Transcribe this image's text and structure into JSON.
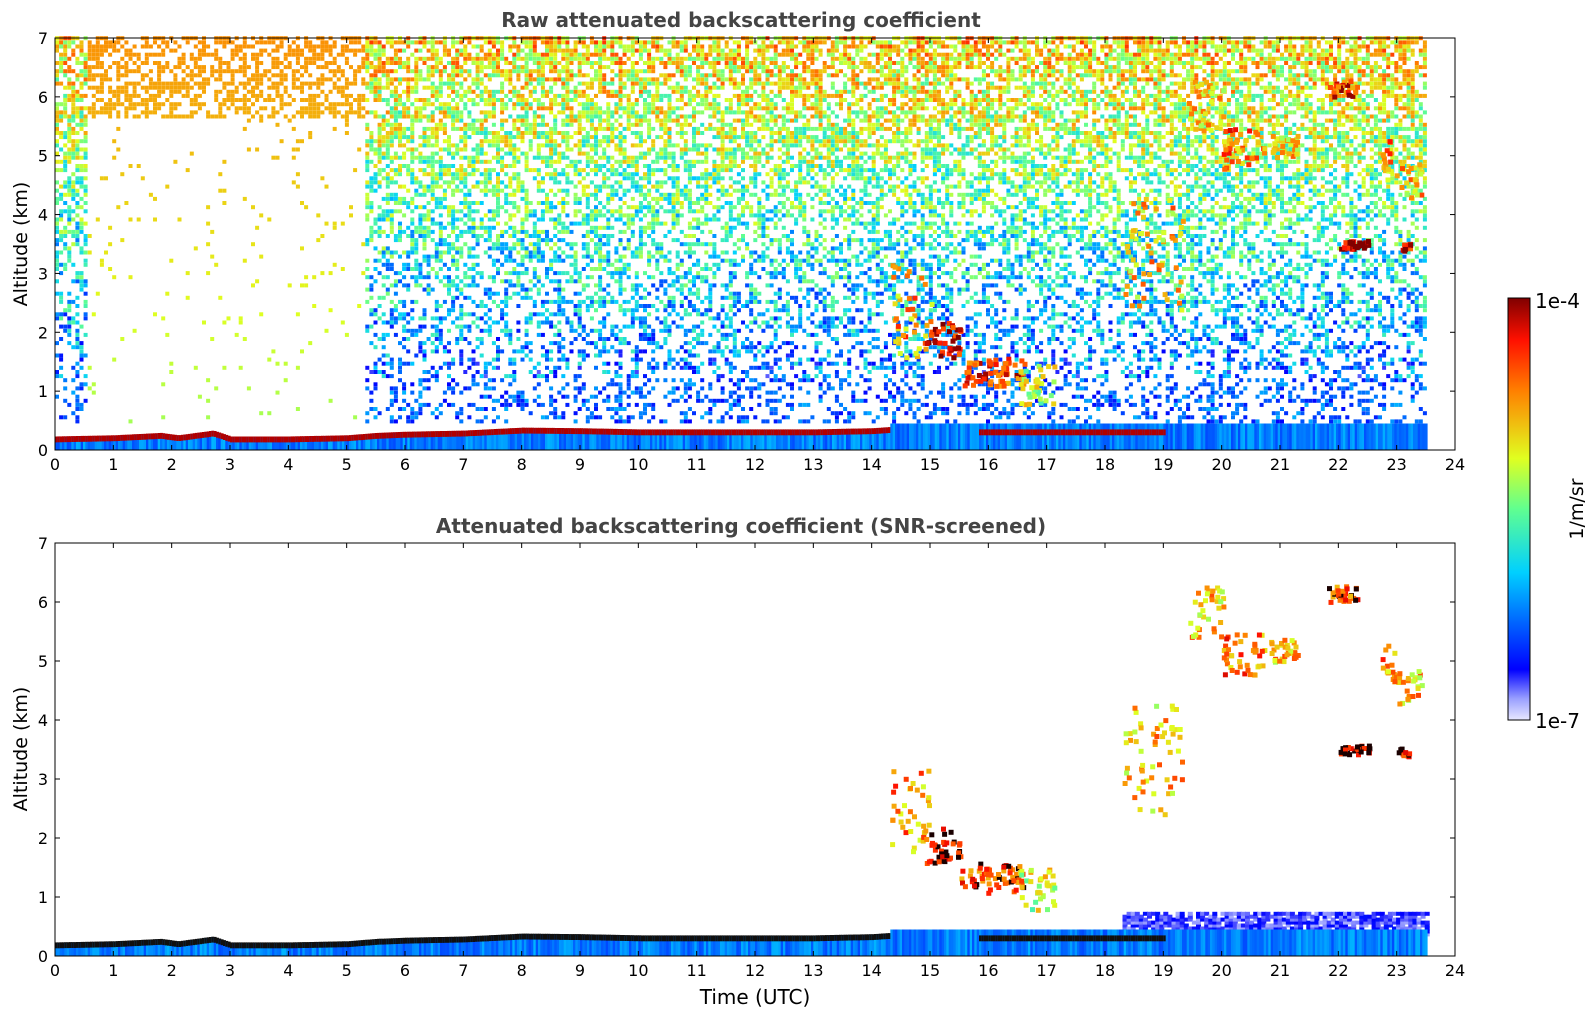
{
  "chart_data": [
    {
      "type": "heatmap",
      "title": "Raw attenuated backscattering coefficient",
      "xlabel": "",
      "ylabel": "Altitude (km)",
      "xlim": [
        0,
        24
      ],
      "ylim": [
        0,
        7
      ],
      "xticks": [
        "0",
        "1",
        "2",
        "3",
        "4",
        "5",
        "6",
        "7",
        "8",
        "9",
        "10",
        "11",
        "12",
        "13",
        "14",
        "15",
        "16",
        "17",
        "18",
        "19",
        "20",
        "21",
        "22",
        "23",
        "24"
      ],
      "yticks": [
        "0",
        "1",
        "2",
        "3",
        "4",
        "5",
        "6",
        "7"
      ],
      "data_end_time": 23.5,
      "features": {
        "boundary_layer_top": {
          "t": [
            0,
            1,
            1.8,
            2.1,
            2.7,
            3,
            4,
            5,
            5.5,
            6,
            7,
            8,
            9,
            10,
            11,
            12,
            13,
            14,
            14.3
          ],
          "z": [
            0.18,
            0.2,
            0.24,
            0.2,
            0.28,
            0.18,
            0.18,
            0.2,
            0.24,
            0.26,
            0.28,
            0.33,
            0.32,
            0.3,
            0.3,
            0.3,
            0.3,
            0.32,
            0.34
          ]
        },
        "cloud_patches": [
          {
            "t0": 14.3,
            "t1": 15.0,
            "z0": 1.6,
            "z1": 3.2,
            "intensity": 0.75
          },
          {
            "t0": 14.9,
            "t1": 15.5,
            "z0": 1.6,
            "z1": 2.2,
            "intensity": 0.95
          },
          {
            "t0": 15.5,
            "t1": 16.6,
            "z0": 1.1,
            "z1": 1.6,
            "intensity": 0.85
          },
          {
            "t0": 16.5,
            "t1": 17.1,
            "z0": 0.8,
            "z1": 1.5,
            "intensity": 0.6
          },
          {
            "t0": 18.3,
            "t1": 19.3,
            "z0": 2.4,
            "z1": 4.3,
            "intensity": 0.7
          },
          {
            "t0": 19.4,
            "t1": 20.0,
            "z0": 5.4,
            "z1": 6.3,
            "intensity": 0.7
          },
          {
            "t0": 20.0,
            "t1": 20.7,
            "z0": 4.8,
            "z1": 5.5,
            "intensity": 0.78
          },
          {
            "t0": 20.8,
            "t1": 21.3,
            "z0": 5.0,
            "z1": 5.4,
            "intensity": 0.7
          },
          {
            "t0": 21.8,
            "t1": 22.3,
            "z0": 6.0,
            "z1": 6.3,
            "intensity": 0.85
          },
          {
            "t0": 22.7,
            "t1": 23.0,
            "z0": 4.6,
            "z1": 5.3,
            "intensity": 0.75
          },
          {
            "t0": 23.0,
            "t1": 23.4,
            "z0": 4.3,
            "z1": 4.9,
            "intensity": 0.7
          },
          {
            "t0": 22.0,
            "t1": 22.5,
            "z0": 3.45,
            "z1": 3.6,
            "intensity": 1.0
          },
          {
            "t0": 23.0,
            "t1": 23.2,
            "z0": 3.4,
            "z1": 3.55,
            "intensity": 0.95
          }
        ]
      }
    },
    {
      "type": "heatmap",
      "title": "Attenuated backscattering coefficient (SNR-screened)",
      "xlabel": "Time (UTC)",
      "ylabel": "Altitude (km)",
      "xlim": [
        0,
        24
      ],
      "ylim": [
        0,
        7
      ],
      "xticks": [
        "0",
        "1",
        "2",
        "3",
        "4",
        "5",
        "6",
        "7",
        "8",
        "9",
        "10",
        "11",
        "12",
        "13",
        "14",
        "15",
        "16",
        "17",
        "18",
        "19",
        "20",
        "21",
        "22",
        "23",
        "24"
      ],
      "yticks": [
        "0",
        "1",
        "2",
        "3",
        "4",
        "5",
        "6",
        "7"
      ],
      "data_end_time": 23.5,
      "features": {
        "boundary_layer_top": {
          "t": [
            0,
            1,
            1.8,
            2.1,
            2.7,
            3,
            4,
            5,
            5.5,
            6,
            7,
            8,
            9,
            10,
            11,
            12,
            13,
            14,
            14.3
          ],
          "z": [
            0.18,
            0.2,
            0.24,
            0.2,
            0.28,
            0.18,
            0.18,
            0.2,
            0.24,
            0.26,
            0.28,
            0.33,
            0.32,
            0.3,
            0.3,
            0.3,
            0.3,
            0.32,
            0.34
          ]
        },
        "cloud_patches": [
          {
            "t0": 14.3,
            "t1": 15.0,
            "z0": 1.6,
            "z1": 3.2,
            "intensity": 0.75
          },
          {
            "t0": 14.9,
            "t1": 15.5,
            "z0": 1.6,
            "z1": 2.2,
            "intensity": 0.95
          },
          {
            "t0": 15.5,
            "t1": 16.6,
            "z0": 1.1,
            "z1": 1.6,
            "intensity": 0.85
          },
          {
            "t0": 16.5,
            "t1": 17.1,
            "z0": 0.8,
            "z1": 1.5,
            "intensity": 0.6
          },
          {
            "t0": 18.3,
            "t1": 19.3,
            "z0": 2.4,
            "z1": 4.3,
            "intensity": 0.7
          },
          {
            "t0": 19.4,
            "t1": 20.0,
            "z0": 5.4,
            "z1": 6.3,
            "intensity": 0.7
          },
          {
            "t0": 20.0,
            "t1": 20.7,
            "z0": 4.8,
            "z1": 5.5,
            "intensity": 0.78
          },
          {
            "t0": 20.8,
            "t1": 21.3,
            "z0": 5.0,
            "z1": 5.4,
            "intensity": 0.7
          },
          {
            "t0": 21.8,
            "t1": 22.3,
            "z0": 6.0,
            "z1": 6.3,
            "intensity": 0.85
          },
          {
            "t0": 22.7,
            "t1": 23.0,
            "z0": 4.6,
            "z1": 5.3,
            "intensity": 0.75
          },
          {
            "t0": 23.0,
            "t1": 23.4,
            "z0": 4.3,
            "z1": 4.9,
            "intensity": 0.7
          },
          {
            "t0": 22.0,
            "t1": 22.5,
            "z0": 3.45,
            "z1": 3.6,
            "intensity": 1.0
          },
          {
            "t0": 23.0,
            "t1": 23.2,
            "z0": 3.4,
            "z1": 3.55,
            "intensity": 0.95
          }
        ]
      }
    }
  ],
  "colorbar": {
    "max_label": "1e-4",
    "min_label": "1e-7",
    "unit_label": "1/m/sr",
    "scale": "log",
    "colormap": "jet"
  }
}
